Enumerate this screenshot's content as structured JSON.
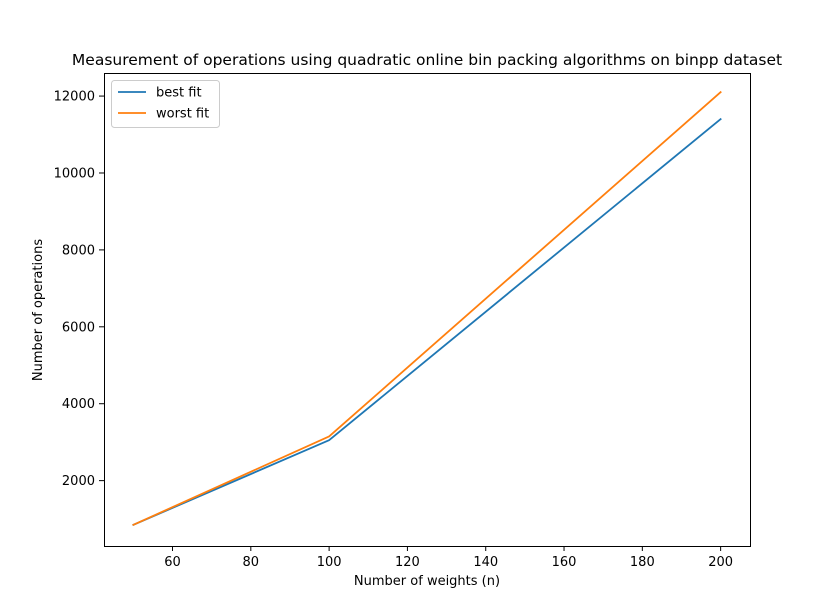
{
  "chart_data": {
    "type": "line",
    "title": "Measurement of operations using quadratic online bin packing algorithms on binpp dataset",
    "xlabel": "Number of weights (n)",
    "ylabel": "Number of operations",
    "xlim": [
      42.5,
      207.5
    ],
    "ylim": [
      300,
      12600
    ],
    "xticks": [
      60,
      80,
      100,
      120,
      140,
      160,
      180,
      200
    ],
    "yticks": [
      2000,
      4000,
      6000,
      8000,
      10000,
      12000
    ],
    "grid": false,
    "legend": "top-left",
    "series": [
      {
        "name": "best fit",
        "color": "#1f77b4",
        "x": [
          50,
          100,
          200
        ],
        "y": [
          850,
          3050,
          11400
        ]
      },
      {
        "name": "worst fit",
        "color": "#ff7f0e",
        "x": [
          50,
          100,
          200
        ],
        "y": [
          850,
          3150,
          12100
        ]
      }
    ]
  }
}
